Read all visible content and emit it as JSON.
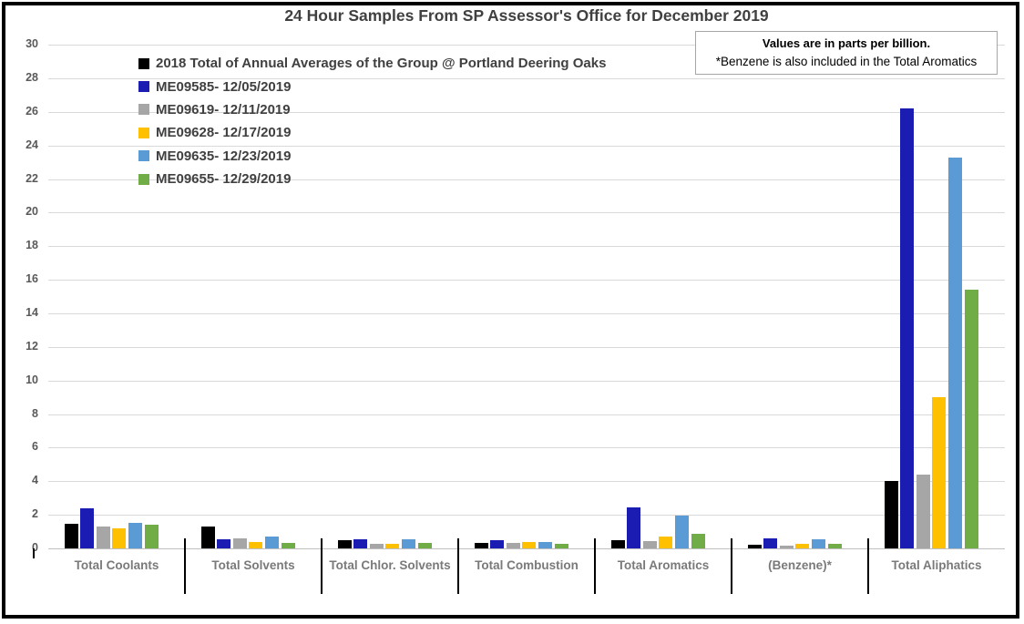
{
  "chart_data": {
    "type": "bar",
    "title": "24 Hour Samples From SP Assessor's Office for December 2019",
    "annotations": [
      "Values are in parts per billion.",
      "*Benzene is also included in the Total Aromatics"
    ],
    "categories": [
      "Total Coolants",
      "Total Solvents",
      "Total Chlor. Solvents",
      "Total Combustion",
      "Total Aromatics",
      "(Benzene)*",
      "Total Aliphatics"
    ],
    "series": [
      {
        "name": "2018 Total of Annual Averages of the Group @ Portland Deering Oaks",
        "color": "#000000",
        "values": [
          1.45,
          1.3,
          0.5,
          0.35,
          0.5,
          0.2,
          4.0
        ]
      },
      {
        "name": "ME09585- 12/05/2019",
        "color": "#1b1db2",
        "values": [
          2.4,
          0.55,
          0.55,
          0.5,
          2.45,
          0.6,
          26.2
        ]
      },
      {
        "name": "ME09619- 12/11/2019",
        "color": "#a6a6a6",
        "values": [
          1.3,
          0.6,
          0.25,
          0.3,
          0.45,
          0.15,
          4.4
        ]
      },
      {
        "name": "ME09628- 12/17/2019",
        "color": "#ffc000",
        "values": [
          1.2,
          0.4,
          0.25,
          0.4,
          0.7,
          0.25,
          9.0
        ]
      },
      {
        "name": "ME09635- 12/23/2019",
        "color": "#5b9bd5",
        "values": [
          1.5,
          0.7,
          0.55,
          0.4,
          1.95,
          0.55,
          23.3
        ]
      },
      {
        "name": "ME09655- 12/29/2019",
        "color": "#70ad47",
        "values": [
          1.4,
          0.3,
          0.35,
          0.25,
          0.85,
          0.25,
          15.4
        ]
      }
    ],
    "ylim": [
      0,
      30
    ],
    "ytick_step": 2,
    "grid": true,
    "legend_position": "top-left-inside",
    "layout_colors": {
      "grid": "#d9d9d9",
      "axis": "#bfbfbf",
      "title_text": "#404040",
      "tick_text": "#595959",
      "category_text": "#7a7a7a",
      "divider": "#000000",
      "frame": "#000000",
      "background": "#ffffff"
    }
  }
}
